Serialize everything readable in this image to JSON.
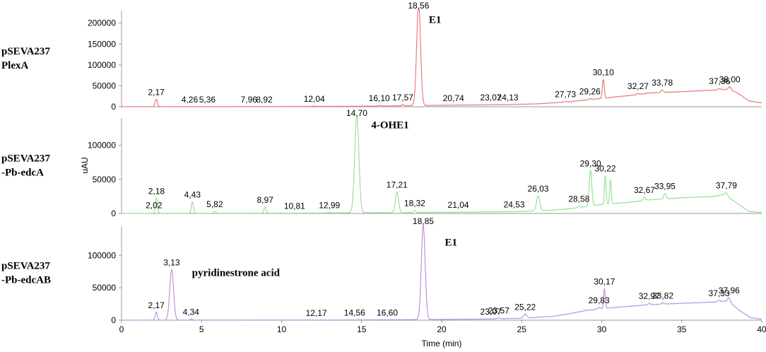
{
  "chart_data": {
    "type": "line",
    "xlabel": "Time (min)",
    "ylabel": "uAU",
    "xlim": [
      0,
      40
    ],
    "x_ticks": [
      0,
      5,
      10,
      15,
      20,
      25,
      30,
      35,
      40
    ],
    "panels": [
      {
        "id": "plexA",
        "label_lines": [
          "pSEVA237",
          "PlexA"
        ],
        "color": "#e8726f",
        "ylim": [
          0,
          230000
        ],
        "y_ticks": [
          0,
          50000,
          100000,
          150000,
          200000
        ],
        "baseline": [
          [
            0,
            0
          ],
          [
            10,
            300
          ],
          [
            16,
            1500
          ],
          [
            18,
            2500
          ],
          [
            20,
            3500
          ],
          [
            24,
            5000
          ],
          [
            26,
            7000
          ],
          [
            28,
            12000
          ],
          [
            30,
            20000
          ],
          [
            32,
            28000
          ],
          [
            33,
            33000
          ],
          [
            35,
            36000
          ],
          [
            37,
            40000
          ],
          [
            38,
            42000
          ],
          [
            38.6,
            30000
          ],
          [
            39.2,
            14000
          ],
          [
            40,
            9000
          ]
        ],
        "peaks": [
          {
            "t": 2.17,
            "h": 18000,
            "label": "2,17"
          },
          {
            "t": 4.26,
            "h": 0,
            "label": "4,26"
          },
          {
            "t": 5.36,
            "h": 0,
            "label": "5,36"
          },
          {
            "t": 7.96,
            "h": 0,
            "label": "7,96"
          },
          {
            "t": 8.92,
            "h": 0,
            "label": "8,92"
          },
          {
            "t": 12.04,
            "h": 800,
            "label": "12,04"
          },
          {
            "t": 16.1,
            "h": 1500,
            "label": "16,10"
          },
          {
            "t": 17.57,
            "h": 3000,
            "label": "17,57"
          },
          {
            "t": 18.56,
            "h": 245000,
            "label": "18,56",
            "w": 0.12
          },
          {
            "t": 20.74,
            "h": 0,
            "label": "20,74"
          },
          {
            "t": 23.07,
            "h": 0,
            "label": "23,07"
          },
          {
            "t": 24.13,
            "h": 0,
            "label": "24,13"
          },
          {
            "t": 27.73,
            "h": 1500,
            "label": "27,73"
          },
          {
            "t": 29.26,
            "h": 2000,
            "label": "29,26"
          },
          {
            "t": 30.1,
            "h": 45000,
            "label": "30,10",
            "w": 0.06
          },
          {
            "t": 32.27,
            "h": 2500,
            "label": "32,27"
          },
          {
            "t": 33.78,
            "h": 6000,
            "label": "33,78"
          },
          {
            "t": 37.36,
            "h": 3000,
            "label": "37,36"
          },
          {
            "t": 38.0,
            "h": 6000,
            "label": "38,00"
          }
        ],
        "annotations": [
          {
            "text": "E1",
            "t": 19.2,
            "y": 200000
          }
        ]
      },
      {
        "id": "edcA",
        "label_lines": [
          "pSEVA237",
          "-Pb-edcA"
        ],
        "color": "#8fe08f",
        "ylim": [
          0,
          140000
        ],
        "y_ticks": [
          0,
          50000,
          100000
        ],
        "baseline": [
          [
            0,
            0
          ],
          [
            12,
            500
          ],
          [
            14,
            1000
          ],
          [
            18,
            1500
          ],
          [
            22,
            2000
          ],
          [
            25,
            3000
          ],
          [
            27,
            5000
          ],
          [
            28,
            7000
          ],
          [
            29,
            10000
          ],
          [
            30,
            13000
          ],
          [
            32,
            17000
          ],
          [
            33,
            20000
          ],
          [
            35,
            23000
          ],
          [
            37,
            25000
          ],
          [
            37.7,
            28000
          ],
          [
            38.5,
            14000
          ],
          [
            39.2,
            3000
          ],
          [
            40,
            1500
          ]
        ],
        "peaks": [
          {
            "t": 2.02,
            "h": 0,
            "label": "2,02"
          },
          {
            "t": 2.18,
            "h": 22000,
            "label": "2,18"
          },
          {
            "t": 4.43,
            "h": 17000,
            "label": "4,43"
          },
          {
            "t": 5.82,
            "h": 3000,
            "label": "5,82"
          },
          {
            "t": 8.97,
            "h": 9000,
            "label": "8,97"
          },
          {
            "t": 10.81,
            "h": 0,
            "label": "10,81"
          },
          {
            "t": 12.99,
            "h": 1000,
            "label": "12,99"
          },
          {
            "t": 14.7,
            "h": 142000,
            "label": "14,70",
            "w": 0.13
          },
          {
            "t": 17.21,
            "h": 30000,
            "label": "17,21",
            "w": 0.1
          },
          {
            "t": 18.32,
            "h": 3000,
            "label": "18,32"
          },
          {
            "t": 21.04,
            "h": 0,
            "label": "21,04"
          },
          {
            "t": 24.53,
            "h": 0,
            "label": "24,53"
          },
          {
            "t": 26.03,
            "h": 22000,
            "label": "26,03",
            "w": 0.1
          },
          {
            "t": 28.58,
            "h": 2000,
            "label": "28,58"
          },
          {
            "t": 29.3,
            "h": 52000,
            "label": "29,30",
            "w": 0.08
          },
          {
            "t": 30.22,
            "h": 42000,
            "label": "30,22",
            "w": 0.05
          },
          {
            "t": 30.55,
            "h": 35000,
            "label": "",
            "w": 0.05
          },
          {
            "t": 32.67,
            "h": 5000,
            "label": "32,67"
          },
          {
            "t": 33.95,
            "h": 8000,
            "label": "33,95"
          },
          {
            "t": 37.79,
            "h": 4000,
            "label": "37,79"
          }
        ],
        "annotations": [
          {
            "text": "4-OHE1",
            "t": 15.6,
            "y": 125000
          }
        ]
      },
      {
        "id": "edcAB",
        "label_lines": [
          "pSEVA237",
          "-Pb-edcAB"
        ],
        "color": "#b98be0",
        "ylim": [
          0,
          145000
        ],
        "y_ticks": [
          0,
          50000,
          100000
        ],
        "baseline": [
          [
            0,
            0
          ],
          [
            14,
            300
          ],
          [
            18,
            800
          ],
          [
            22,
            1500
          ],
          [
            25,
            3000
          ],
          [
            27,
            6000
          ],
          [
            28,
            10000
          ],
          [
            29,
            15000
          ],
          [
            30,
            18000
          ],
          [
            32,
            22000
          ],
          [
            33,
            24000
          ],
          [
            35,
            26000
          ],
          [
            37,
            28000
          ],
          [
            37.9,
            30000
          ],
          [
            38.6,
            15000
          ],
          [
            39.3,
            4000
          ],
          [
            40,
            1500
          ]
        ],
        "peaks": [
          {
            "t": 2.17,
            "h": 12000,
            "label": "2,17"
          },
          {
            "t": 3.13,
            "h": 78000,
            "label": "3,13",
            "w": 0.12
          },
          {
            "t": 4.34,
            "h": 1500,
            "label": "4,34"
          },
          {
            "t": 12.17,
            "h": 0,
            "label": "12,17"
          },
          {
            "t": 14.56,
            "h": 0,
            "label": "14,56"
          },
          {
            "t": 16.6,
            "h": 0,
            "label": "16,60"
          },
          {
            "t": 18.85,
            "h": 145000,
            "label": "18,85",
            "w": 0.12
          },
          {
            "t": 23.07,
            "h": 0,
            "label": "23,07"
          },
          {
            "t": 23.57,
            "h": 1500,
            "label": "23,57"
          },
          {
            "t": 25.22,
            "h": 6000,
            "label": "25,22",
            "w": 0.1
          },
          {
            "t": 29.83,
            "h": 2000,
            "label": "29,83"
          },
          {
            "t": 30.17,
            "h": 30000,
            "label": "30,17",
            "w": 0.05
          },
          {
            "t": 32.97,
            "h": 2000,
            "label": "32,97"
          },
          {
            "t": 33.82,
            "h": 2000,
            "label": "33,82"
          },
          {
            "t": 37.33,
            "h": 2000,
            "label": "37,33"
          },
          {
            "t": 37.96,
            "h": 6000,
            "label": "37,96"
          }
        ],
        "annotations": [
          {
            "text": "pyridinestrone acid",
            "t": 4.4,
            "y": 68000
          },
          {
            "text": "E1",
            "t": 20.2,
            "y": 115000
          }
        ]
      }
    ]
  }
}
